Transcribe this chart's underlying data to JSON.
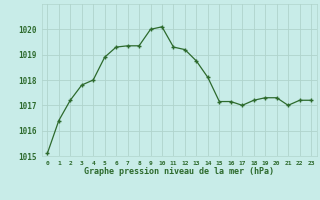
{
  "x": [
    0,
    1,
    2,
    3,
    4,
    5,
    6,
    7,
    8,
    9,
    10,
    11,
    12,
    13,
    14,
    15,
    16,
    17,
    18,
    19,
    20,
    21,
    22,
    23
  ],
  "y": [
    1015.1,
    1016.4,
    1017.2,
    1017.8,
    1018.0,
    1018.9,
    1019.3,
    1019.35,
    1019.35,
    1020.0,
    1020.1,
    1019.3,
    1019.2,
    1018.75,
    1018.1,
    1017.15,
    1017.15,
    1017.0,
    1017.2,
    1017.3,
    1017.3,
    1017.0,
    1017.2,
    1017.2
  ],
  "line_color": "#2d6a2d",
  "marker_color": "#2d6a2d",
  "bg_color": "#c8ece8",
  "grid_color": "#b0d4cc",
  "xlabel": "Graphe pression niveau de la mer (hPa)",
  "xlabel_color": "#2d6a2d",
  "tick_color": "#2d6a2d",
  "ylim": [
    1015,
    1021
  ],
  "yticks": [
    1015,
    1016,
    1017,
    1018,
    1019,
    1020
  ],
  "xlim": [
    -0.5,
    23.5
  ],
  "xticks": [
    0,
    1,
    2,
    3,
    4,
    5,
    6,
    7,
    8,
    9,
    10,
    11,
    12,
    13,
    14,
    15,
    16,
    17,
    18,
    19,
    20,
    21,
    22,
    23
  ],
  "xtick_labels": [
    "0",
    "1",
    "2",
    "3",
    "4",
    "5",
    "6",
    "7",
    "8",
    "9",
    "10",
    "11",
    "12",
    "13",
    "14",
    "15",
    "16",
    "17",
    "18",
    "19",
    "20",
    "21",
    "22",
    "23"
  ]
}
